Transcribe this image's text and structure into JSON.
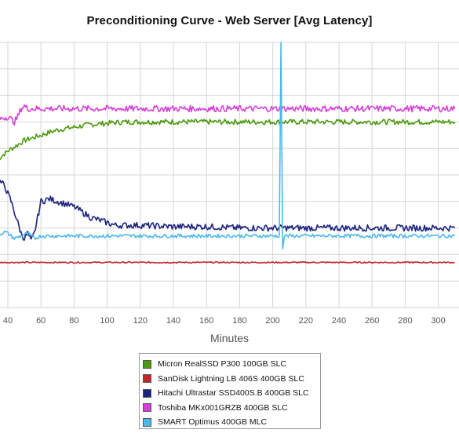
{
  "chart_data": {
    "type": "line",
    "title": "Preconditioning Curve - Web Server [Avg Latency]",
    "xlabel": "Minutes",
    "ylabel": "",
    "x_ticks": [
      40,
      60,
      80,
      100,
      120,
      140,
      160,
      180,
      200,
      220,
      240,
      260,
      280,
      300
    ],
    "xlim": [
      34,
      310
    ],
    "ylim": [
      0,
      100
    ],
    "grid": true,
    "legend_position": "bottom-center",
    "series": [
      {
        "name": "Micron RealSSD P300 100GB SLC",
        "color": "#4c9a0f",
        "x": [
          34,
          40,
          45,
          50,
          55,
          60,
          65,
          70,
          80,
          90,
          100,
          110,
          120,
          140,
          160,
          180,
          200,
          220,
          240,
          260,
          280,
          300,
          310
        ],
        "y": [
          56,
          59,
          61,
          63,
          64,
          65,
          66,
          67,
          68,
          69,
          69.5,
          70,
          70,
          70,
          70,
          70,
          70,
          70,
          70,
          70,
          70,
          70,
          70
        ],
        "noise": 1.0
      },
      {
        "name": "SanDisk Lightning LB 406S 400GB SLC",
        "color": "#c1272d",
        "x": [
          34,
          100,
          200,
          310
        ],
        "y": [
          17,
          17,
          17,
          17
        ],
        "noise": 0.25
      },
      {
        "name": "Hitachi Ultrastar SSD400S.B 400GB SLC",
        "color": "#1a237e",
        "x": [
          34,
          38,
          40,
          42,
          44,
          46,
          48,
          50,
          52,
          54,
          56,
          58,
          60,
          65,
          70,
          75,
          80,
          85,
          90,
          95,
          100,
          105,
          110,
          120,
          140,
          160,
          180,
          200,
          220,
          240,
          260,
          280,
          300,
          310
        ],
        "y": [
          48,
          46,
          43,
          40,
          36,
          32,
          28,
          26,
          28,
          25,
          28,
          34,
          40,
          41,
          40,
          39,
          38,
          36,
          34,
          33,
          32,
          31,
          31,
          31,
          30.5,
          30.5,
          30,
          30,
          30,
          30,
          30,
          30,
          30,
          30
        ],
        "noise": 1.2
      },
      {
        "name": "Toshiba MKx001GRZB 400GB SLC",
        "color": "#d63fd6",
        "x": [
          34,
          40,
          44,
          46,
          48,
          50,
          52,
          56,
          60,
          80,
          120,
          160,
          200,
          240,
          280,
          310
        ],
        "y": [
          71,
          72,
          70,
          72,
          75,
          76,
          75,
          75,
          75,
          75,
          75,
          75,
          75,
          75,
          75,
          75
        ],
        "noise": 1.2
      },
      {
        "name": "SMART Optimus 400GB MLC",
        "color": "#4cb9e9",
        "x": [
          34,
          36,
          38,
          40,
          42,
          44,
          46,
          48,
          50,
          52,
          54,
          56,
          58,
          60,
          80,
          120,
          160,
          200,
          204,
          205,
          206,
          207,
          208,
          220,
          260,
          300,
          310
        ],
        "y": [
          27,
          28,
          28.5,
          28,
          27,
          26,
          26.5,
          27,
          27.5,
          28,
          27,
          26,
          26.5,
          27,
          27,
          27,
          27,
          27,
          27,
          100,
          22,
          27,
          27,
          27,
          27,
          27,
          27
        ],
        "noise": 0.7
      }
    ]
  }
}
